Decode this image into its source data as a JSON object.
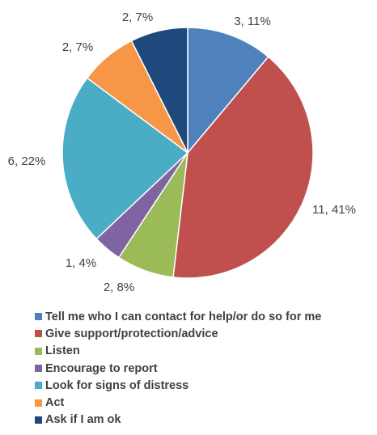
{
  "chart_data": {
    "type": "pie",
    "series": [
      {
        "name": "Tell me who I can contact for help/or do so for me",
        "value": 3,
        "percent": "11%",
        "label": "3, 11%",
        "color": "#4f81bd"
      },
      {
        "name": "Give support/protection/advice",
        "value": 11,
        "percent": "41%",
        "label": "11, 41%",
        "color": "#c0504d"
      },
      {
        "name": "Listen",
        "value": 2,
        "percent": "8%",
        "label": "2, 8%",
        "color": "#9bbb59"
      },
      {
        "name": "Encourage to report",
        "value": 1,
        "percent": "4%",
        "label": "1, 4%",
        "color": "#8064a2"
      },
      {
        "name": "Look for signs of distress",
        "value": 6,
        "percent": "22%",
        "label": "6, 22%",
        "color": "#4bacc6"
      },
      {
        "name": "Act",
        "value": 2,
        "percent": "7%",
        "label": "2, 7%",
        "color": "#f79646"
      },
      {
        "name": "Ask if I am ok",
        "value": 2,
        "percent": "7%",
        "label": "2, 7%",
        "color": "#1f497d"
      }
    ],
    "legend_position": "bottom"
  }
}
